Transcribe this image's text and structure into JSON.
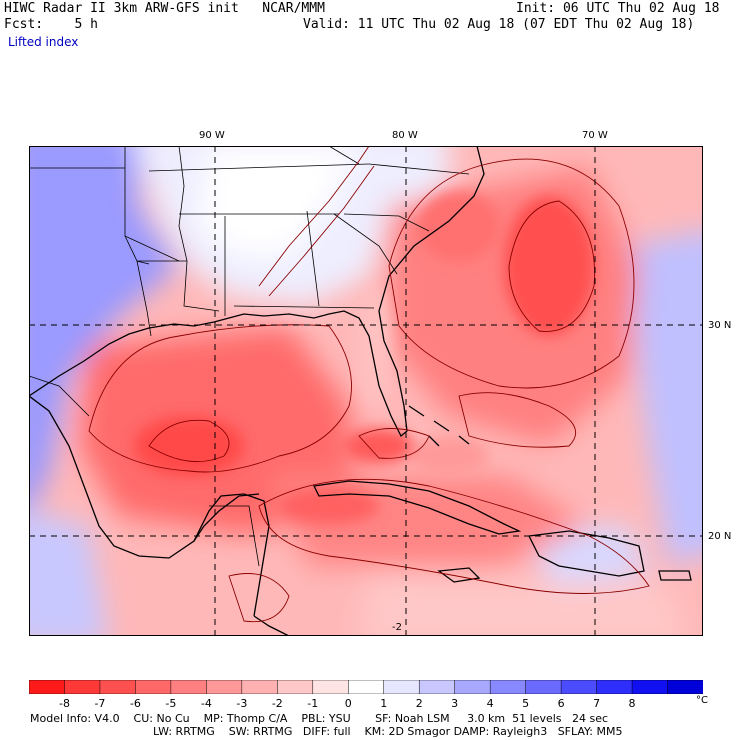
{
  "header": {
    "title_left": "HIWC Radar II 3km ARW-GFS init   NCAR/MMM",
    "init": "Init: 06 UTC Thu 02 Aug 18",
    "fcst": "Fcst:    5 h",
    "valid": "Valid: 11 UTC Thu 02 Aug 18 (07 EDT Thu 02 Aug 18)",
    "field": "Lifted index"
  },
  "map": {
    "lon_labels": [
      "90 W",
      "80 W",
      "70 W"
    ],
    "lat_labels": [
      "30 N",
      "20 N"
    ],
    "contour_label": "-2"
  },
  "colorbar": {
    "ticks": [
      "-8",
      "-7",
      "-6",
      "-5",
      "-4",
      "-3",
      "-2",
      "-1",
      "0",
      "1",
      "2",
      "3",
      "4",
      "5",
      "6",
      "7",
      "8"
    ],
    "unit": "°C",
    "colors": [
      "#ff1a1a",
      "#ff3838",
      "#ff5050",
      "#ff6868",
      "#ff8080",
      "#ff9898",
      "#ffb0b0",
      "#ffc8c8",
      "#ffe4e4",
      "#ffffff",
      "#e6e6ff",
      "#c8c8ff",
      "#a8a8ff",
      "#8888ff",
      "#6a6aff",
      "#4c4cff",
      "#2e2eff",
      "#1010f0",
      "#0000d8"
    ]
  },
  "footer": {
    "line1": "Model Info: V4.0    CU: No Cu    MP: Thomp C/A    PBL: YSU       SF: Noah LSM     3.0 km  51 levels   24 sec",
    "line2": "LW: RRTMG    SW: RRTMG   DIFF: full    KM: 2D Smagor DAMP: Rayleigh3   SFLAY: MM5"
  }
}
